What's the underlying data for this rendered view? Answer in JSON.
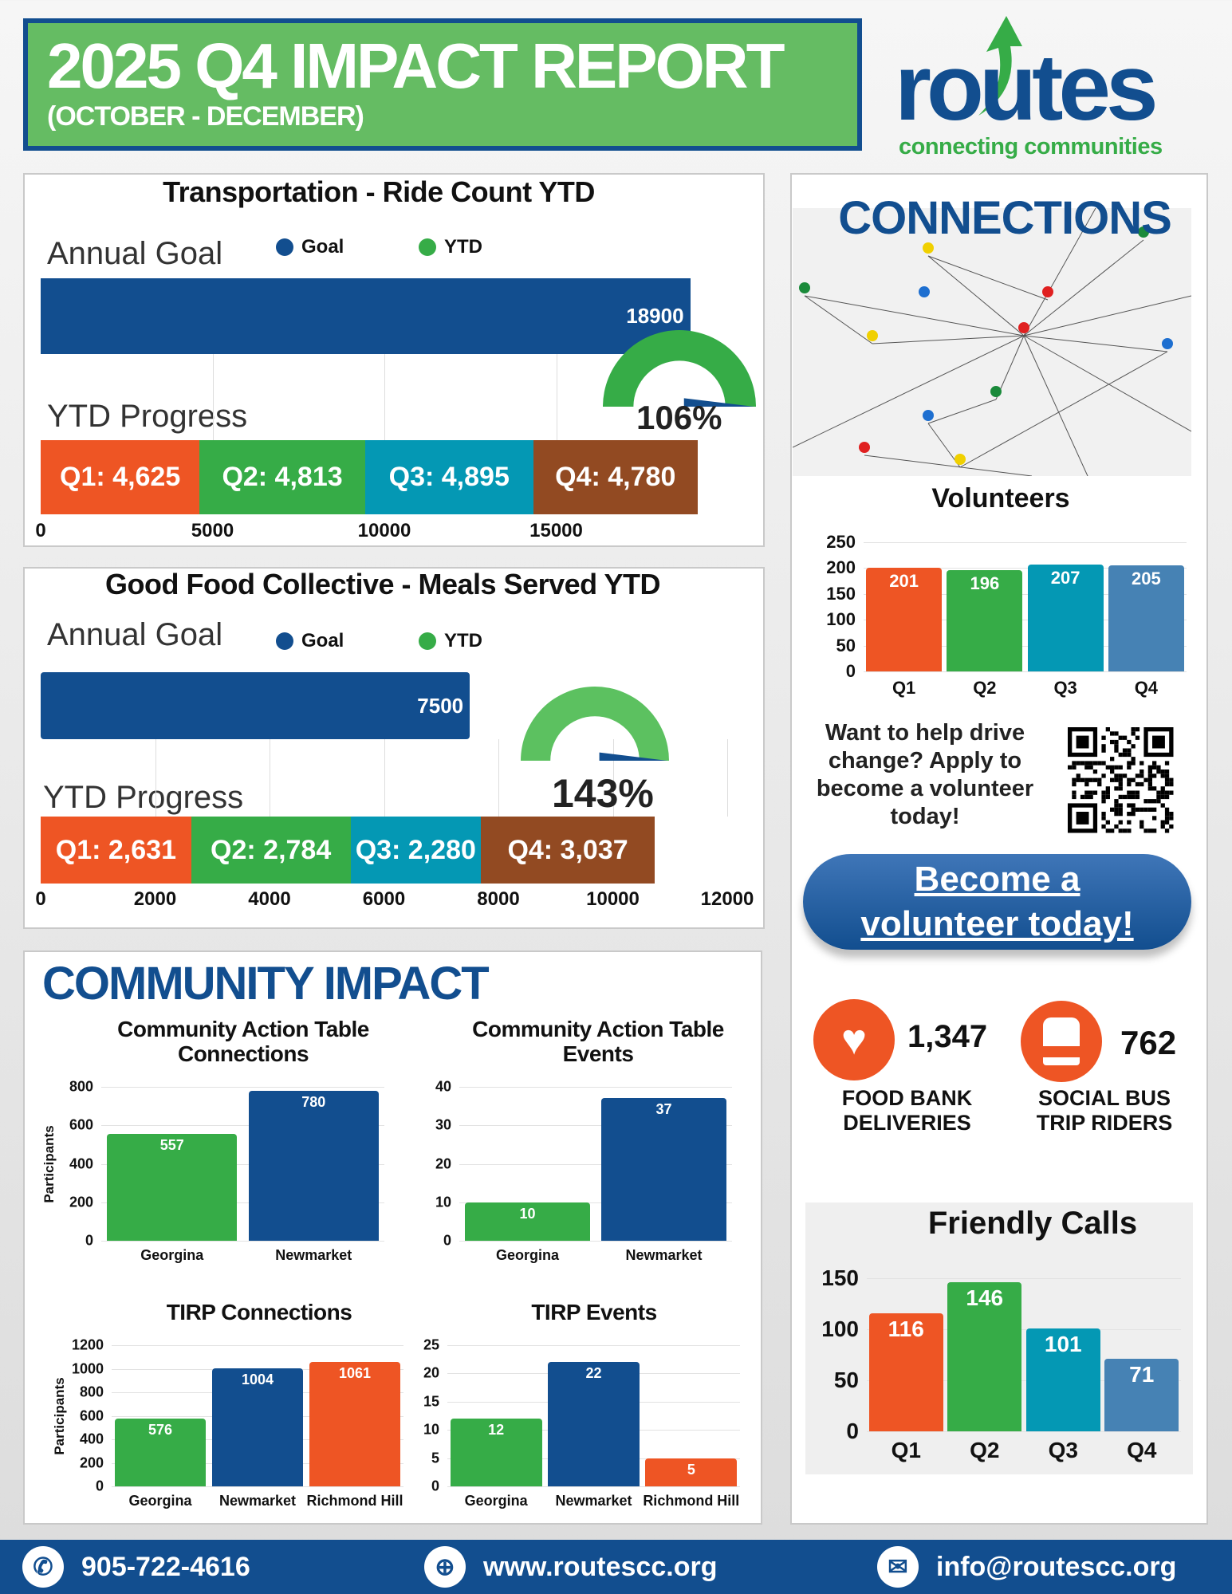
{
  "header": {
    "title": "2025 Q4 IMPACT REPORT",
    "subtitle": "(OCTOBER - DECEMBER)"
  },
  "logo": {
    "name": "routes",
    "tagline": "connecting communities"
  },
  "colors": {
    "blue": "#124e8f",
    "green": "#36ac47",
    "orange": "#ee5524",
    "teal": "#0498b4",
    "brown": "#924a22",
    "steel": "#4682b4"
  },
  "transport": {
    "title": "Transportation - Ride Count YTD",
    "annual_goal_label": "Annual Goal",
    "ytd_progress_label": "YTD Progress",
    "legend": [
      {
        "label": "Goal",
        "color": "#124e8f"
      },
      {
        "label": "YTD",
        "color": "#36ac47"
      }
    ],
    "goal": 18900,
    "goal_label": "18900",
    "percent": "106%",
    "percent_value": 106,
    "axis_max": 20000,
    "axis_ticks": [
      {
        "label": "0",
        "value": 0
      },
      {
        "label": "5000",
        "value": 5000
      },
      {
        "label": "10000",
        "value": 10000
      },
      {
        "label": "15000",
        "value": 15000
      }
    ],
    "quarters": [
      {
        "label": "Q1: 4,625",
        "value": 4625,
        "color": "#ee5524"
      },
      {
        "label": "Q2: 4,813",
        "value": 4813,
        "color": "#36ac47"
      },
      {
        "label": "Q3: 4,895",
        "value": 4895,
        "color": "#0498b4"
      },
      {
        "label": "Q4: 4,780",
        "value": 4780,
        "color": "#924a22"
      }
    ]
  },
  "food": {
    "title": "Good Food Collective - Meals Served YTD",
    "annual_goal_label": "Annual Goal",
    "ytd_progress_label": "YTD Progress",
    "legend": [
      {
        "label": "Goal",
        "color": "#124e8f"
      },
      {
        "label": "YTD",
        "color": "#36ac47"
      }
    ],
    "goal": 7500,
    "goal_label": "7500",
    "percent": "143%",
    "percent_value": 143,
    "axis_max": 12000,
    "axis_ticks": [
      {
        "label": "0",
        "value": 0
      },
      {
        "label": "2000",
        "value": 2000
      },
      {
        "label": "4000",
        "value": 4000
      },
      {
        "label": "6000",
        "value": 6000
      },
      {
        "label": "8000",
        "value": 8000
      },
      {
        "label": "10000",
        "value": 10000
      },
      {
        "label": "12000",
        "value": 12000
      }
    ],
    "quarters": [
      {
        "label": "Q1: 2,631",
        "value": 2631,
        "color": "#ee5524"
      },
      {
        "label": "Q2: 2,784",
        "value": 2784,
        "color": "#36ac47"
      },
      {
        "label": "Q3: 2,280",
        "value": 2280,
        "color": "#0498b4"
      },
      {
        "label": "Q4: 3,037",
        "value": 3037,
        "color": "#924a22"
      }
    ]
  },
  "connections": {
    "title": "CONNECTIONS"
  },
  "volunteer_cta": {
    "text": "Want to help drive change? Apply to become a volunteer today!",
    "button": "Become a volunteer today!"
  },
  "stats": [
    {
      "value": "1,347",
      "label": "FOOD BANK DELIVERIES",
      "icon": "food-basket-icon"
    },
    {
      "value": "762",
      "label": "SOCIAL BUS TRIP RIDERS",
      "icon": "bus-icon"
    }
  ],
  "community": {
    "title": "COMMUNITY IMPACT"
  },
  "chart_data": [
    {
      "id": "volunteers",
      "type": "bar",
      "title": "Volunteers",
      "categories": [
        "Q1",
        "Q2",
        "Q3",
        "Q4"
      ],
      "values": [
        201,
        196,
        207,
        205
      ],
      "colors": [
        "#ee5524",
        "#36ac47",
        "#0498b4",
        "#4682b4"
      ],
      "ylim": [
        0,
        250
      ],
      "yticks": [
        0,
        50,
        100,
        150,
        200,
        250
      ],
      "ylabel": "",
      "xlabel": ""
    },
    {
      "id": "cat_conn",
      "type": "bar",
      "title": "Community Action Table Connections",
      "categories": [
        "Georgina",
        "Newmarket"
      ],
      "values": [
        557,
        780
      ],
      "colors": [
        "#36ac47",
        "#124e8f"
      ],
      "ylim": [
        0,
        800
      ],
      "yticks": [
        0,
        200,
        400,
        600,
        800
      ],
      "ylabel": "Participants",
      "xlabel": ""
    },
    {
      "id": "cat_events",
      "type": "bar",
      "title": "Community Action Table Events",
      "categories": [
        "Georgina",
        "Newmarket"
      ],
      "values": [
        10,
        37
      ],
      "colors": [
        "#36ac47",
        "#124e8f"
      ],
      "ylim": [
        0,
        40
      ],
      "yticks": [
        0,
        10,
        20,
        30,
        40
      ],
      "ylabel": "",
      "xlabel": ""
    },
    {
      "id": "tirp_conn",
      "type": "bar",
      "title": "TIRP Connections",
      "categories": [
        "Georgina",
        "Newmarket",
        "Richmond Hill"
      ],
      "values": [
        576,
        1004,
        1061
      ],
      "colors": [
        "#36ac47",
        "#124e8f",
        "#ee5524"
      ],
      "ylim": [
        0,
        1200
      ],
      "yticks": [
        0,
        200,
        400,
        600,
        800,
        1000,
        1200
      ],
      "ylabel": "Participants",
      "xlabel": ""
    },
    {
      "id": "tirp_events",
      "type": "bar",
      "title": "TIRP Events",
      "categories": [
        "Georgina",
        "Newmarket",
        "Richmond Hill"
      ],
      "values": [
        12,
        22,
        5
      ],
      "colors": [
        "#36ac47",
        "#124e8f",
        "#ee5524"
      ],
      "ylim": [
        0,
        25
      ],
      "yticks": [
        0,
        5,
        10,
        15,
        20,
        25
      ],
      "ylabel": "",
      "xlabel": ""
    },
    {
      "id": "friendly",
      "type": "bar",
      "title": "Friendly Calls",
      "categories": [
        "Q1",
        "Q2",
        "Q3",
        "Q4"
      ],
      "values": [
        116,
        146,
        101,
        71
      ],
      "colors": [
        "#ee5524",
        "#36ac47",
        "#0498b4",
        "#4682b4"
      ],
      "ylim": [
        0,
        150
      ],
      "yticks": [
        0,
        50,
        100,
        150
      ],
      "ylabel": "",
      "xlabel": ""
    }
  ],
  "footer": {
    "phone": "905-722-4616",
    "website": "www.routescc.org",
    "email": "info@routescc.org"
  }
}
